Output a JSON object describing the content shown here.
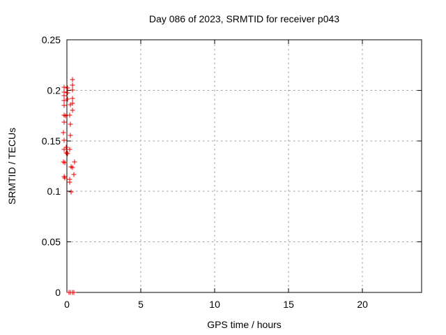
{
  "chart_data": {
    "type": "scatter",
    "title": "Day 086 of 2023, SRMTID for receiver p043",
    "xlabel": "GPS time / hours",
    "ylabel": "SRMTID / TECUs",
    "xlim": [
      0,
      24
    ],
    "ylim": [
      0,
      0.25
    ],
    "xticks": [
      0,
      5,
      10,
      15,
      20
    ],
    "xtick_labels": [
      "0",
      "5",
      "10",
      "15",
      "20"
    ],
    "yticks": [
      0,
      0.05,
      0.1,
      0.15,
      0.2,
      0.25
    ],
    "ytick_labels": [
      "0",
      "0.05",
      "0.1",
      "0.15",
      "0.2",
      "0.25"
    ],
    "grid": true,
    "legend": "none",
    "marker": {
      "shape": "plus",
      "color": "#ee0000",
      "size": 7
    },
    "series": [
      {
        "name": "SRMTID",
        "points": [
          [
            0.38,
            0.2106
          ],
          [
            0.38,
            0.2051
          ],
          [
            -0.19,
            0.203
          ],
          [
            0.05,
            0.2023
          ],
          [
            0.38,
            0.2003
          ],
          [
            -0.19,
            0.1982
          ],
          [
            0.05,
            0.1975
          ],
          [
            -0.19,
            0.1947
          ],
          [
            0.38,
            0.192
          ],
          [
            0.05,
            0.1913
          ],
          [
            -0.19,
            0.1899
          ],
          [
            0.38,
            0.1871
          ],
          [
            0.24,
            0.1857
          ],
          [
            -0.19,
            0.1851
          ],
          [
            0.38,
            0.1802
          ],
          [
            -0.19,
            0.1754
          ],
          [
            -0.09,
            0.1747
          ],
          [
            0.19,
            0.1754
          ],
          [
            -0.19,
            0.1685
          ],
          [
            0.24,
            0.1664
          ],
          [
            -0.24,
            0.1581
          ],
          [
            0.24,
            0.1554
          ],
          [
            -0.19,
            0.1505
          ],
          [
            -0.05,
            0.1436
          ],
          [
            -0.19,
            0.1416
          ],
          [
            0.19,
            0.1416
          ],
          [
            -0.05,
            0.1381
          ],
          [
            0.05,
            0.1374
          ],
          [
            -0.24,
            0.1291
          ],
          [
            -0.14,
            0.1284
          ],
          [
            0.52,
            0.1291
          ],
          [
            0.28,
            0.1243
          ],
          [
            0.38,
            0.1236
          ],
          [
            -0.19,
            0.1146
          ],
          [
            -0.14,
            0.1133
          ],
          [
            0.19,
            0.1119
          ],
          [
            0.19,
            0.1091
          ],
          [
            0.47,
            0.1167
          ],
          [
            0.28,
            0.0994
          ],
          [
            0.14,
            0.0
          ],
          [
            0.24,
            0.0
          ],
          [
            0.38,
            0.0
          ],
          [
            0.47,
            0.0
          ]
        ]
      }
    ]
  },
  "colors": {
    "background": "#ffffff",
    "axis": "#000000",
    "grid": "#9e9e9e",
    "text": "#000000",
    "marker": "#ee0000"
  }
}
